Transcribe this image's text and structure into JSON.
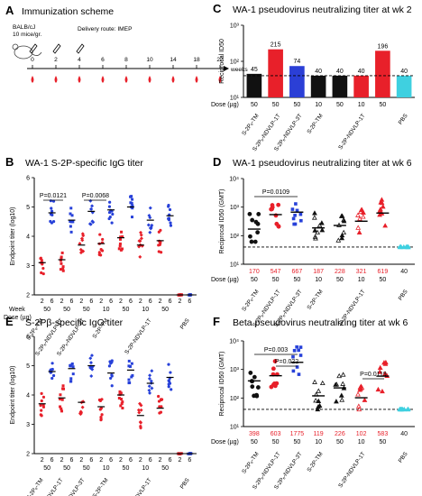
{
  "panels": {
    "A": {
      "letter": "A",
      "title": "Immunization scheme",
      "mouse_line1": "BALB/cJ",
      "mouse_line2": "10 mice/gr.",
      "route": "Delivery route: IMEP",
      "timeline": [
        "0",
        "2",
        "4",
        "6",
        "8",
        "10",
        "14",
        "18",
        "22"
      ],
      "unit": "weeks"
    },
    "B": {
      "letter": "B",
      "title": "WA-1 S-2P-specific IgG titer",
      "ylabel": "Endpoint titer (log10)",
      "week_label": "Week",
      "dose_label": "Dose (µg)",
      "pvals": [
        "P=0.0121",
        "P=0.0068"
      ]
    },
    "C": {
      "letter": "C",
      "title": "WA-1 pseudovirus neutralizing titer at wk 2",
      "ylabel": "Reciprocal ID50",
      "dose_label": "Dose (µg)"
    },
    "D": {
      "letter": "D",
      "title": "WA-1 pseudovirus neutralizing titer at wk 6",
      "ylabel": "Reciprocal ID50 (GMT)",
      "dose_label": "Dose (µg)",
      "pvals": [
        "P=0.0109"
      ]
    },
    "E": {
      "letter": "E",
      "title": "S-2Pβ-specific IgG titer",
      "ylabel": "Endpoint titer (log10)"
    },
    "F": {
      "letter": "F",
      "title": "Beta pseudovirus neutralizing titer at wk 6",
      "ylabel": "Reciprocal ID50 (GMT)",
      "dose_label": "Dose (µg)",
      "pvals": [
        "P=0.003",
        "P=0.022",
        "P=0.0119"
      ]
    }
  },
  "colors": {
    "red": "#e8202a",
    "blue": "#2741d9",
    "black": "#111111",
    "cyan": "#3fd0e0",
    "blueBar": "#2b3fd6"
  },
  "chart_data": [
    {
      "id": "B",
      "type": "scatter",
      "title": "WA-1 S-2P-specific IgG titer",
      "ylabel": "Endpoint titer (log10)",
      "ylim": [
        2,
        6
      ],
      "yticks": [
        "2",
        "3",
        "4",
        "5",
        "6"
      ],
      "groups": [
        "S-2Pₑ-TM",
        "S-2Pₑ-NDVLP-1T",
        "S-2Pₑ-NDVLP-3T",
        "S-2P-TM",
        "S-2P-NDVLP-1T",
        "PBS"
      ],
      "group_labels": [
        "S-2Pₑ-TM",
        "S-2Pₑ-\nNDVLP-1T",
        "S-2Pₑ-\nNDVLP-3T",
        "S-2P-TM",
        "S-2P-\nNDVLP-1T",
        "PBS"
      ],
      "doses": [
        "50",
        "50",
        "50",
        "10",
        "50",
        "10",
        "50",
        ""
      ],
      "weeks": [
        "2",
        "6",
        "2",
        "6",
        "2",
        "6",
        "2",
        "6",
        "2",
        "6",
        "2",
        "6",
        "2",
        "6",
        "2",
        "6"
      ],
      "medians": [
        3.1,
        4.8,
        3.2,
        4.55,
        3.7,
        4.85,
        3.75,
        4.9,
        3.95,
        5.0,
        3.7,
        4.55,
        3.85,
        4.7,
        2.0,
        2.0
      ]
    },
    {
      "id": "C",
      "type": "bar",
      "title": "WA-1 pseudovirus neutralizing titer at wk 2",
      "ylabel": "Reciprocal ID50",
      "scale": "log",
      "yticks": [
        "10¹",
        "10²",
        "10³"
      ],
      "categories": [
        "S-2Pₑ-TM",
        "S-2Pₑ-NDVLP-1T",
        "S-2Pₑ-NDVLP-3T",
        "S-2P-TM 10",
        "S-2P-TM 50",
        "S-2P-NDVLP-1T 10",
        "S-2P-NDVLP-1T 50",
        "PBS"
      ],
      "doses": [
        "50",
        "50",
        "50",
        "10",
        "50",
        "10",
        "50",
        ""
      ],
      "values": [
        45,
        215,
        74,
        40,
        40,
        40,
        196,
        40
      ],
      "labels": [
        "45",
        "215",
        "74",
        "40",
        "40",
        "40",
        "196",
        "40"
      ]
    },
    {
      "id": "D",
      "type": "scatter",
      "title": "WA-1 pseudovirus neutralizing titer at wk 6",
      "ylabel": "Reciprocal ID50 (GMT)",
      "scale": "log",
      "yticks": [
        "10¹",
        "10²",
        "10³",
        "10⁴"
      ],
      "groups": [
        "S-2Pₑ-TM",
        "S-2Pₑ-NDVLP-1T",
        "S-2Pₑ-NDVLP-3T",
        "S-2P-TM",
        "S-2P-NDVLP-1T",
        "PBS"
      ],
      "doses": [
        "50",
        "50",
        "50",
        "10",
        "50",
        "10",
        "50",
        ""
      ],
      "gmt": [
        170,
        547,
        667,
        187,
        228,
        321,
        619,
        40
      ],
      "gmt_labels": [
        "170",
        "547",
        "667",
        "187",
        "228",
        "321",
        "619",
        "40"
      ]
    },
    {
      "id": "E",
      "type": "scatter",
      "title": "S-2Pβ-specific IgG titer",
      "ylabel": "Endpoint titer (log10)",
      "ylim": [
        2,
        6
      ],
      "yticks": [
        "2",
        "3",
        "4",
        "5",
        "6"
      ],
      "weeks": [
        "2",
        "6",
        "2",
        "6",
        "2",
        "6",
        "2",
        "6",
        "2",
        "6",
        "2",
        "6",
        "2",
        "6",
        "2",
        "6"
      ],
      "doses": [
        "50",
        "50",
        "50",
        "10",
        "50",
        "10",
        "50",
        ""
      ],
      "medians": [
        3.7,
        4.8,
        3.9,
        4.9,
        3.75,
        5.0,
        3.6,
        4.75,
        4.0,
        4.85,
        3.3,
        4.4,
        3.55,
        4.6,
        2.0,
        2.0
      ]
    },
    {
      "id": "F",
      "type": "scatter",
      "title": "Beta pseudovirus neutralizing titer at wk 6",
      "ylabel": "Reciprocal ID50 (GMT)",
      "scale": "log",
      "yticks": [
        "10¹",
        "10²",
        "10³",
        "10⁴"
      ],
      "doses": [
        "50",
        "50",
        "50",
        "10",
        "50",
        "10",
        "50",
        ""
      ],
      "gmt": [
        398,
        603,
        1775,
        119,
        226,
        102,
        583,
        40
      ],
      "gmt_labels": [
        "398",
        "603",
        "1775",
        "119",
        "226",
        "102",
        "583",
        "40"
      ]
    }
  ]
}
